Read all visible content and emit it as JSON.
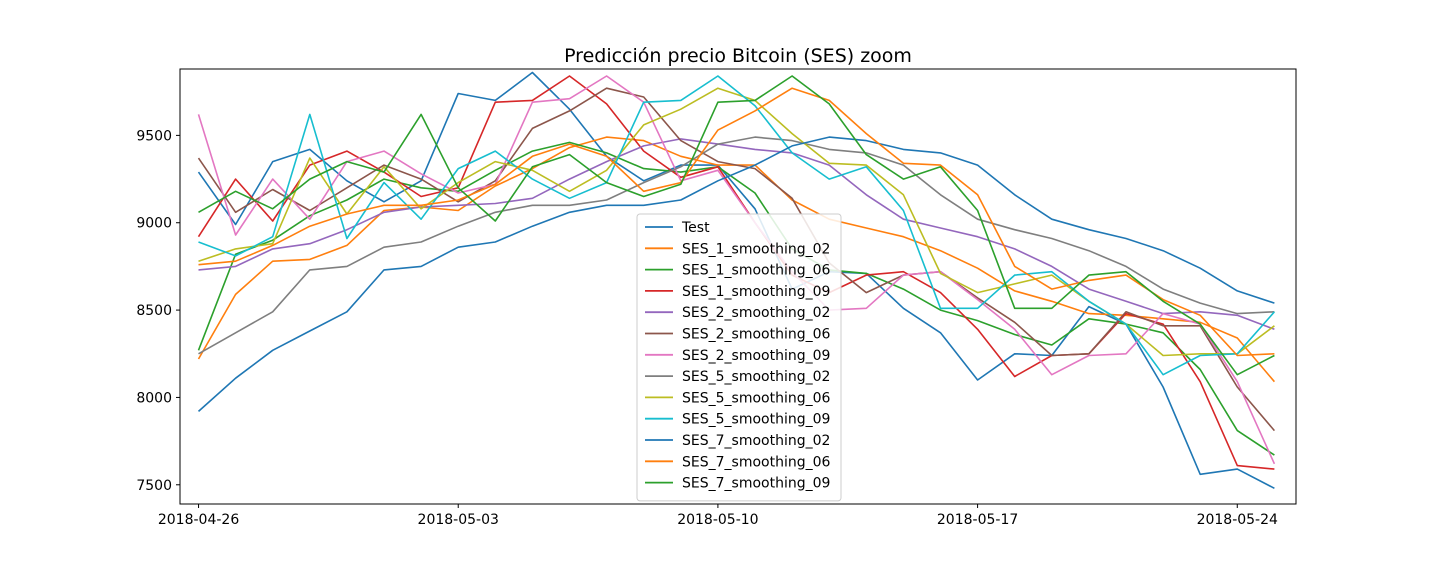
{
  "chart_data": {
    "type": "line",
    "title": "Predicción precio Bitcoin (SES) zoom",
    "xlabel": "",
    "ylabel": "",
    "x": [
      "2018-04-26",
      "2018-04-27",
      "2018-04-28",
      "2018-04-29",
      "2018-04-30",
      "2018-05-01",
      "2018-05-02",
      "2018-05-03",
      "2018-05-04",
      "2018-05-05",
      "2018-05-06",
      "2018-05-07",
      "2018-05-08",
      "2018-05-09",
      "2018-05-10",
      "2018-05-11",
      "2018-05-12",
      "2018-05-13",
      "2018-05-14",
      "2018-05-15",
      "2018-05-16",
      "2018-05-17",
      "2018-05-18",
      "2018-05-19",
      "2018-05-20",
      "2018-05-21",
      "2018-05-22",
      "2018-05-23",
      "2018-05-24",
      "2018-05-25"
    ],
    "x_ticks": [
      "2018-04-26",
      "2018-05-03",
      "2018-05-10",
      "2018-05-17",
      "2018-05-24"
    ],
    "y_ticks": [
      7500,
      8000,
      8500,
      9000,
      9500
    ],
    "xlim": [
      "2018-04-25T12:00",
      "2018-05-25T14:00"
    ],
    "ylim": [
      7390,
      9880
    ],
    "grid": false,
    "legend_placement": "center",
    "series": [
      {
        "name": "Test",
        "color": "#1f77b4",
        "values": [
          9290,
          8990,
          9350,
          9420,
          9240,
          9120,
          9240,
          9740,
          9700,
          9860,
          9650,
          9380,
          9240,
          9330,
          9330,
          9080,
          8620,
          8720,
          8710,
          8510,
          8370,
          8100,
          8250,
          8240,
          8520,
          8420,
          8060,
          7560,
          7590,
          7480
        ]
      },
      {
        "name": "SES_1_smoothing_02",
        "color": "#ff7f0e",
        "values": [
          8220,
          8590,
          8780,
          8790,
          8870,
          9070,
          9090,
          9070,
          9210,
          9310,
          9430,
          9490,
          9470,
          9380,
          9330,
          9330,
          9130,
          9020,
          8970,
          8920,
          8840,
          8740,
          8610,
          8550,
          8480,
          8470,
          8450,
          8430,
          8340,
          8090
        ]
      },
      {
        "name": "SES_1_smoothing_06",
        "color": "#2ca02c",
        "values": [
          8270,
          8820,
          8900,
          9040,
          9130,
          9250,
          9200,
          9180,
          9300,
          9410,
          9460,
          9400,
          9310,
          9290,
          9320,
          9170,
          8850,
          8730,
          8710,
          8620,
          8500,
          8440,
          8360,
          8300,
          8450,
          8420,
          8370,
          8160,
          7810,
          7670
        ]
      },
      {
        "name": "SES_1_smoothing_09",
        "color": "#d62728",
        "values": [
          8920,
          9250,
          9010,
          9330,
          9410,
          9290,
          9150,
          9200,
          9690,
          9700,
          9840,
          9680,
          9410,
          9260,
          9320,
          9000,
          8700,
          8600,
          8700,
          8720,
          8600,
          8390,
          8120,
          8240,
          8250,
          8480,
          8420,
          8090,
          7610,
          7590
        ]
      },
      {
        "name": "SES_2_smoothing_02",
        "color": "#9467bd",
        "values": [
          8730,
          8750,
          8850,
          8880,
          8960,
          9060,
          9090,
          9100,
          9110,
          9140,
          9250,
          9350,
          9440,
          9480,
          9450,
          9420,
          9400,
          9330,
          9160,
          9020,
          8970,
          8920,
          8850,
          8750,
          8620,
          8550,
          8480,
          8490,
          8470,
          8390
        ]
      },
      {
        "name": "SES_2_smoothing_06",
        "color": "#8c564b",
        "values": [
          9370,
          9060,
          9190,
          9070,
          9200,
          9330,
          9250,
          9120,
          9240,
          9540,
          9640,
          9770,
          9720,
          9470,
          9350,
          9310,
          9140,
          8770,
          8600,
          8700,
          8720,
          8570,
          8430,
          8240,
          8250,
          8490,
          8410,
          8410,
          8060,
          7810
        ]
      },
      {
        "name": "SES_2_smoothing_09",
        "color": "#e377c2",
        "values": [
          9620,
          8930,
          9250,
          9020,
          9350,
          9410,
          9280,
          9170,
          9220,
          9690,
          9710,
          9840,
          9690,
          9240,
          9300,
          9000,
          8720,
          8500,
          8510,
          8700,
          8720,
          8560,
          8390,
          8130,
          8240,
          8250,
          8480,
          8420,
          8090,
          7620
        ]
      },
      {
        "name": "SES_5_smoothing_02",
        "color": "#7f7f7f",
        "values": [
          8250,
          8370,
          8490,
          8730,
          8750,
          8860,
          8890,
          8980,
          9060,
          9100,
          9100,
          9130,
          9230,
          9320,
          9450,
          9490,
          9470,
          9420,
          9400,
          9330,
          9160,
          9020,
          8960,
          8910,
          8840,
          8750,
          8620,
          8540,
          8480,
          8490
        ]
      },
      {
        "name": "SES_5_smoothing_06",
        "color": "#bcbd22",
        "values": [
          8780,
          8850,
          8880,
          9370,
          9050,
          9320,
          9080,
          9230,
          9350,
          9300,
          9180,
          9300,
          9560,
          9650,
          9770,
          9700,
          9510,
          9340,
          9330,
          9160,
          8710,
          8600,
          8650,
          8700,
          8550,
          8420,
          8240,
          8250,
          8250,
          8410
        ]
      },
      {
        "name": "SES_5_smoothing_09",
        "color": "#17becf",
        "values": [
          8890,
          8810,
          8920,
          9620,
          8910,
          9230,
          9020,
          9310,
          9410,
          9250,
          9140,
          9230,
          9690,
          9700,
          9840,
          9670,
          9400,
          9250,
          9320,
          9070,
          8510,
          8510,
          8700,
          8720,
          8550,
          8420,
          8130,
          8240,
          8250,
          8490
        ]
      },
      {
        "name": "SES_7_smoothing_02",
        "color": "#1f77b4",
        "values": [
          7920,
          8110,
          8270,
          8380,
          8490,
          8730,
          8750,
          8860,
          8890,
          8980,
          9060,
          9100,
          9100,
          9130,
          9240,
          9330,
          9440,
          9490,
          9470,
          9420,
          9400,
          9330,
          9160,
          9020,
          8960,
          8910,
          8840,
          8740,
          8610,
          8540
        ]
      },
      {
        "name": "SES_7_smoothing_06",
        "color": "#ff7f0e",
        "values": [
          8760,
          8780,
          8870,
          8980,
          9050,
          9100,
          9100,
          9130,
          9220,
          9380,
          9450,
          9380,
          9180,
          9230,
          9530,
          9640,
          9770,
          9700,
          9510,
          9340,
          9330,
          9160,
          8750,
          8620,
          8670,
          8700,
          8560,
          8470,
          8240,
          8250
        ]
      },
      {
        "name": "SES_7_smoothing_09",
        "color": "#2ca02c",
        "values": [
          9060,
          9180,
          9080,
          9250,
          9350,
          9290,
          9620,
          9200,
          9010,
          9320,
          9390,
          9230,
          9150,
          9220,
          9690,
          9700,
          9840,
          9680,
          9390,
          9250,
          9320,
          9070,
          8510,
          8510,
          8700,
          8720,
          8550,
          8420,
          8130,
          8240
        ]
      }
    ]
  }
}
